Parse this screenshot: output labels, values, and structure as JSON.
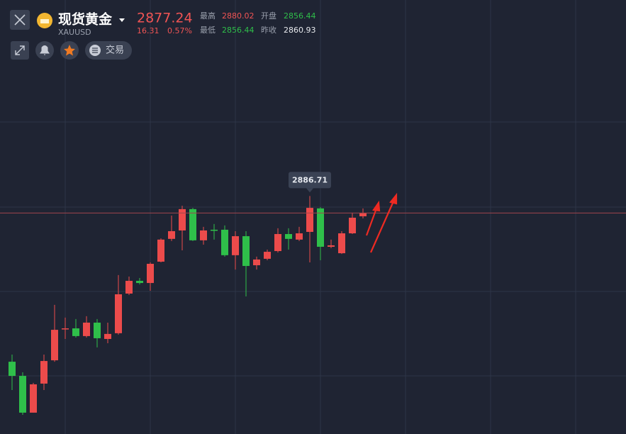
{
  "header": {
    "name": "现货黄金",
    "symbol": "XAUUSD",
    "price": "2877.24",
    "change": "16.31",
    "change_pct": "0.57%",
    "stats": [
      {
        "label": "最高",
        "value": "2880.02"
      },
      {
        "label": "开盘",
        "value": "2856.44"
      },
      {
        "label": "最低",
        "value": "2856.44"
      },
      {
        "label": "昨收",
        "value": "2860.93"
      }
    ],
    "trade_button": "交易"
  },
  "chart_data": {
    "type": "candlestick",
    "ylim": [
      2754,
      2996
    ],
    "up_color": "#ec4b4b",
    "down_color": "#2fbf4a",
    "open": [
      2794.3,
      2786.4,
      2765.9,
      2782.1,
      2795.1,
      2812.5,
      2812.9,
      2808.6,
      2816.1,
      2807.0,
      2810.2,
      2832.3,
      2839.4,
      2838.2,
      2850.1,
      2862.8,
      2867.5,
      2879.4,
      2862.0,
      2867.9,
      2867.9,
      2853.7,
      2864.3,
      2848.1,
      2851.7,
      2856.0,
      2865.5,
      2862.4,
      2866.7,
      2879.8,
      2858.4,
      2854.8,
      2865.9,
      2875.4
    ],
    "high": [
      2798.3,
      2788.4,
      2782.5,
      2798.3,
      2826.0,
      2818.9,
      2818.1,
      2819.7,
      2818.1,
      2816.1,
      2842.6,
      2841.8,
      2841.0,
      2849.7,
      2863.1,
      2875.8,
      2881.3,
      2880.1,
      2869.5,
      2871.1,
      2870.3,
      2867.1,
      2867.1,
      2852.9,
      2856.8,
      2868.7,
      2868.7,
      2869.5,
      2886.71,
      2880.5,
      2862.4,
      2867.1,
      2877.4,
      2879.8
    ],
    "low": [
      2778.5,
      2764.7,
      2765.9,
      2778.5,
      2794.3,
      2807.0,
      2807.8,
      2807.8,
      2802.3,
      2804.6,
      2809.4,
      2831.5,
      2837.4,
      2833.9,
      2849.7,
      2861.6,
      2856.4,
      2861.6,
      2859.6,
      2862.4,
      2852.9,
      2845.7,
      2830.7,
      2845.7,
      2850.9,
      2855.2,
      2856.8,
      2861.6,
      2849.7,
      2850.9,
      2857.6,
      2854.4,
      2865.5,
      2874.2
    ],
    "close": [
      2786.4,
      2765.9,
      2781.7,
      2794.7,
      2812.1,
      2812.9,
      2808.6,
      2816.1,
      2807.4,
      2809.8,
      2831.9,
      2839.4,
      2838.2,
      2848.9,
      2862.4,
      2867.1,
      2879.4,
      2862.0,
      2867.5,
      2867.5,
      2853.7,
      2864.3,
      2847.7,
      2851.3,
      2855.6,
      2865.5,
      2862.8,
      2865.9,
      2880.1,
      2858.4,
      2859.2,
      2865.9,
      2874.6,
      2877.24
    ],
    "max_label": 2886.71,
    "last_price": 2877.24
  }
}
